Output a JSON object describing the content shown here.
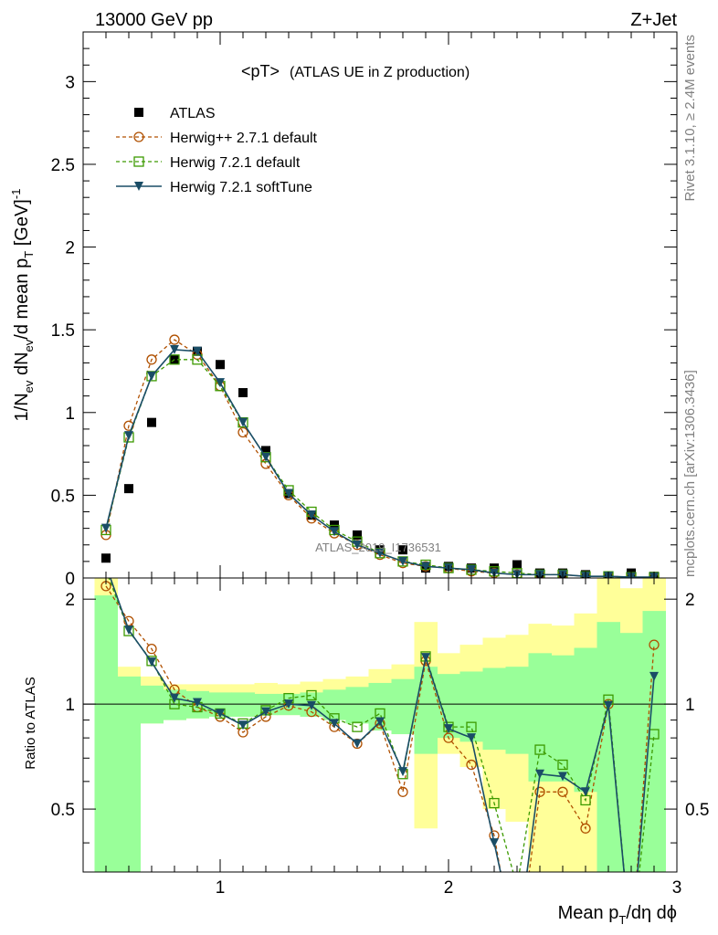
{
  "header": {
    "energy_label": "13000 GeV pp",
    "process_label": "Z+Jet"
  },
  "side_labels": {
    "rivet": "Rivet 3.1.10, ≥ 2.4M events",
    "mcplots": "mcplots.cern.ch [arXiv:1306.3436]"
  },
  "watermark": "ATLAS_2019_I1736531",
  "legend_title": {
    "main": "<pT>",
    "sub": "(ATLAS UE in Z production)"
  },
  "colors": {
    "atlas": "#000000",
    "herwigpp": "#b05000",
    "herwig721": "#3c9a00",
    "softtune": "#1a4d66",
    "band_inner": "#99ff99",
    "band_outer": "#ffff99"
  },
  "chart_data": [
    {
      "type": "scatter",
      "xlabel_main": "Mean p",
      "xlabel_sub": "T",
      "xlabel_rest": "/dη dϕ",
      "ylabel_parts": [
        "1/N",
        "ev",
        " dN",
        "ev",
        "/d mean p",
        "T",
        " [GeV]",
        "-1"
      ],
      "xlim": [
        0.4,
        3.0
      ],
      "ylim": [
        0,
        3.3
      ],
      "x_ticks": [
        1,
        2,
        3
      ],
      "y_ticks": [
        0,
        0.5,
        1,
        1.5,
        2,
        2.5,
        3
      ],
      "y_tick_labels": [
        "0",
        "0.5",
        "1",
        "1.5",
        "2",
        "2.5",
        "3"
      ],
      "x": [
        0.5,
        0.6,
        0.7,
        0.8,
        0.9,
        1.0,
        1.1,
        1.2,
        1.3,
        1.4,
        1.5,
        1.6,
        1.7,
        1.8,
        1.9,
        2.0,
        2.1,
        2.2,
        2.3,
        2.4,
        2.5,
        2.6,
        2.7,
        2.8,
        2.9
      ],
      "series": [
        {
          "name": "ATLAS",
          "marker": "square-filled",
          "values": [
            0.12,
            0.54,
            0.94,
            1.32,
            1.37,
            1.29,
            1.12,
            0.77,
            0.51,
            0.38,
            0.32,
            0.26,
            0.17,
            0.17,
            0.06,
            0.07,
            0.06,
            0.06,
            0.08,
            0.03,
            0.03,
            0.02,
            0.01,
            0.03,
            0.01
          ]
        },
        {
          "name": "Herwig++ 2.7.1 default",
          "marker": "circle-open",
          "values": [
            0.26,
            0.92,
            1.32,
            1.44,
            1.35,
            1.16,
            0.88,
            0.69,
            0.5,
            0.36,
            0.27,
            0.2,
            0.14,
            0.09,
            0.07,
            0.06,
            0.04,
            0.03,
            0.02,
            0.02,
            0.02,
            0.01,
            0.01,
            0.005,
            0.005
          ]
        },
        {
          "name": "Herwig 7.2.1 default",
          "marker": "square-open",
          "values": [
            0.29,
            0.85,
            1.22,
            1.32,
            1.32,
            1.16,
            0.94,
            0.73,
            0.53,
            0.4,
            0.29,
            0.22,
            0.15,
            0.1,
            0.08,
            0.06,
            0.05,
            0.04,
            0.03,
            0.02,
            0.02,
            0.01,
            0.01,
            0.005,
            0.005
          ]
        },
        {
          "name": "Herwig 7.2.1 softTune",
          "marker": "triangle-down-filled",
          "values": [
            0.3,
            0.86,
            1.22,
            1.38,
            1.37,
            1.18,
            0.94,
            0.73,
            0.51,
            0.38,
            0.28,
            0.2,
            0.15,
            0.1,
            0.07,
            0.06,
            0.05,
            0.03,
            0.02,
            0.02,
            0.02,
            0.01,
            0.01,
            0.005,
            0.005
          ]
        }
      ]
    },
    {
      "type": "line",
      "ylabel": "Ratio to ATLAS",
      "xlim": [
        0.4,
        3.0
      ],
      "ylim": [
        0.33,
        2.3
      ],
      "y_log": true,
      "x_ticks": [
        1,
        2,
        3
      ],
      "x_tick_labels": [
        "1",
        "2",
        "3"
      ],
      "y_ticks": [
        0.5,
        1,
        2
      ],
      "y_tick_labels": [
        "0.5",
        "1",
        "2"
      ],
      "reference_line": 1.0,
      "bin_edges": [
        0.45,
        0.55,
        0.65,
        0.75,
        0.85,
        0.95,
        1.05,
        1.15,
        1.25,
        1.35,
        1.45,
        1.55,
        1.65,
        1.75,
        1.85,
        1.95,
        2.05,
        2.15,
        2.25,
        2.35,
        2.45,
        2.55,
        2.65,
        2.75,
        2.85,
        2.95
      ],
      "band_inner": {
        "low": [
          0.3,
          0.3,
          0.88,
          0.9,
          0.91,
          0.92,
          0.92,
          0.93,
          0.93,
          0.92,
          0.9,
          0.88,
          0.84,
          0.82,
          0.72,
          0.8,
          0.78,
          0.74,
          0.72,
          0.6,
          0.6,
          0.56,
          0.3,
          0.3,
          0.3
        ],
        "high": [
          2.05,
          1.2,
          1.13,
          1.1,
          1.09,
          1.08,
          1.08,
          1.07,
          1.07,
          1.08,
          1.1,
          1.12,
          1.15,
          1.18,
          1.28,
          1.22,
          1.24,
          1.27,
          1.28,
          1.4,
          1.38,
          1.45,
          1.72,
          1.6,
          1.85
        ]
      },
      "band_outer": {
        "low": [
          0.3,
          0.8,
          0.88,
          0.9,
          0.91,
          0.92,
          0.92,
          0.93,
          0.93,
          0.92,
          0.9,
          0.88,
          0.84,
          0.82,
          0.44,
          0.72,
          0.66,
          0.5,
          0.46,
          0.3,
          0.3,
          0.3,
          0.3,
          0.3,
          0.3
        ],
        "high": [
          2.3,
          1.28,
          1.2,
          1.14,
          1.14,
          1.14,
          1.14,
          1.15,
          1.14,
          1.16,
          1.18,
          1.2,
          1.26,
          1.3,
          1.72,
          1.4,
          1.48,
          1.55,
          1.58,
          1.7,
          1.68,
          1.82,
          2.3,
          2.15,
          2.3
        ]
      },
      "series": [
        {
          "name": "Herwig++ 2.7.1 default",
          "marker": "circle-open",
          "values": [
            2.18,
            1.73,
            1.44,
            1.1,
            0.98,
            0.92,
            0.83,
            0.92,
            0.99,
            0.95,
            0.86,
            0.77,
            0.88,
            0.56,
            1.33,
            0.8,
            0.67,
            0.42,
            0.18,
            0.56,
            0.56,
            0.44,
            1.0,
            0.2,
            1.48
          ]
        },
        {
          "name": "Herwig 7.2.1 default",
          "marker": "square-open",
          "values": [
            2.42,
            1.62,
            1.33,
            1.0,
            0.98,
            0.94,
            0.88,
            0.96,
            1.04,
            1.06,
            0.91,
            0.86,
            0.94,
            0.63,
            1.37,
            0.86,
            0.86,
            0.52,
            0.3,
            0.74,
            0.67,
            0.53,
            1.03,
            0.2,
            0.82
          ]
        },
        {
          "name": "Herwig 7.2.1 softTune",
          "marker": "triangle-down-filled",
          "values": [
            2.5,
            1.63,
            1.32,
            1.04,
            1.01,
            0.94,
            0.87,
            0.95,
            1.0,
            0.99,
            0.88,
            0.77,
            0.89,
            0.64,
            1.36,
            0.85,
            0.8,
            0.4,
            0.2,
            0.63,
            0.62,
            0.56,
            0.99,
            0.2,
            1.2
          ]
        }
      ]
    }
  ]
}
